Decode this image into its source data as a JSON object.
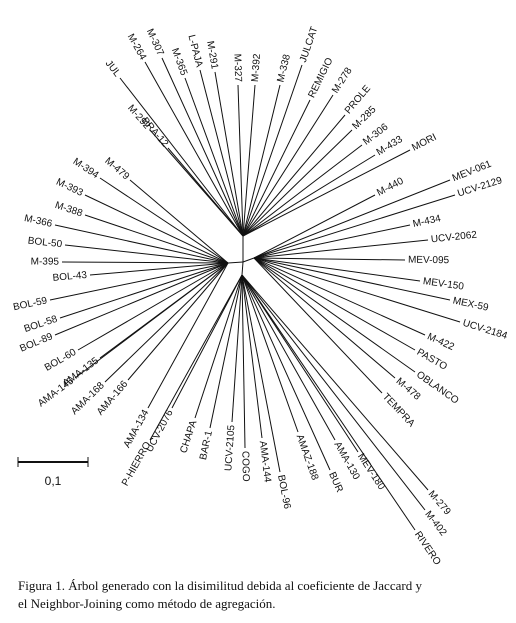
{
  "figure": {
    "leaves": [
      "M-264",
      "JUL",
      "M-307",
      "M-365",
      "L-PAJA",
      "M-291",
      "M-327",
      "M-392",
      "M-338",
      "JULCAT",
      "REMIGIO",
      "M-278",
      "PROLE",
      "M-285",
      "M-306",
      "M-433",
      "MORI",
      "M-292",
      "BRA-12",
      "M-479",
      "M-394",
      "M-393",
      "M-388",
      "M-366",
      "BOL-50",
      "M-395",
      "BOL-43",
      "BOL-59",
      "BOL-58",
      "BOL-89",
      "BOL-60",
      "AMA-135",
      "AMA-145",
      "AMA-168",
      "AMA-166",
      "AMA-134",
      "P-HIERRO",
      "UCV-2076",
      "CHAPA",
      "BAR-1",
      "UCV-2105",
      "COGO",
      "AMA-144",
      "BOL-96",
      "AMAZ-188",
      "BUR",
      "AMA-130",
      "MEV-180",
      "M-279",
      "M-402",
      "RIVERO",
      "MEV-061",
      "UCV-2129",
      "M-440",
      "M-434",
      "UCV-2062",
      "MEV-095",
      "MEV-150",
      "MEX-59",
      "UCV-2184",
      "M-422",
      "PASTO",
      "OBLANCO",
      "M-478",
      "TEMPRA"
    ],
    "scale_bar": "0,1"
  },
  "caption": [
    "Figura 1. Árbol generado con la disimilitud debida al coeficiente de Jaccard y",
    "el Neighbor-Joining como método de agregación."
  ]
}
